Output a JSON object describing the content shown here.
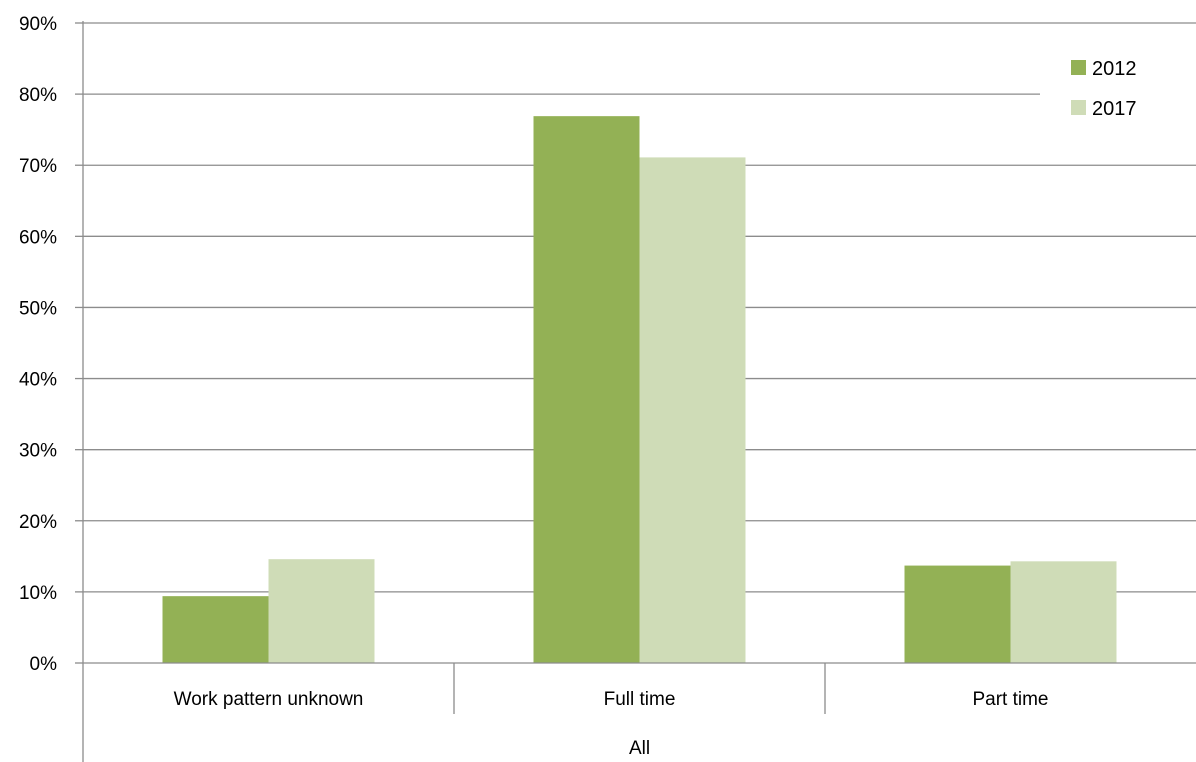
{
  "chart_data": {
    "type": "bar",
    "title": "",
    "xlabel": "",
    "ylabel": "",
    "group_label": "All",
    "categories": [
      "Work pattern unknown",
      "Full time",
      "Part time"
    ],
    "series": [
      {
        "name": "2012",
        "values": [
          9.4,
          76.9,
          13.7
        ],
        "color": "#93b155"
      },
      {
        "name": "2017",
        "values": [
          14.6,
          71.1,
          14.3
        ],
        "color": "#cfdcb7"
      }
    ],
    "ylim": [
      0,
      90
    ],
    "yticks": [
      "0%",
      "10%",
      "20%",
      "30%",
      "40%",
      "50%",
      "60%",
      "70%",
      "80%",
      "90%"
    ],
    "y_format": "percent",
    "grid": true,
    "legend": "top-right"
  }
}
